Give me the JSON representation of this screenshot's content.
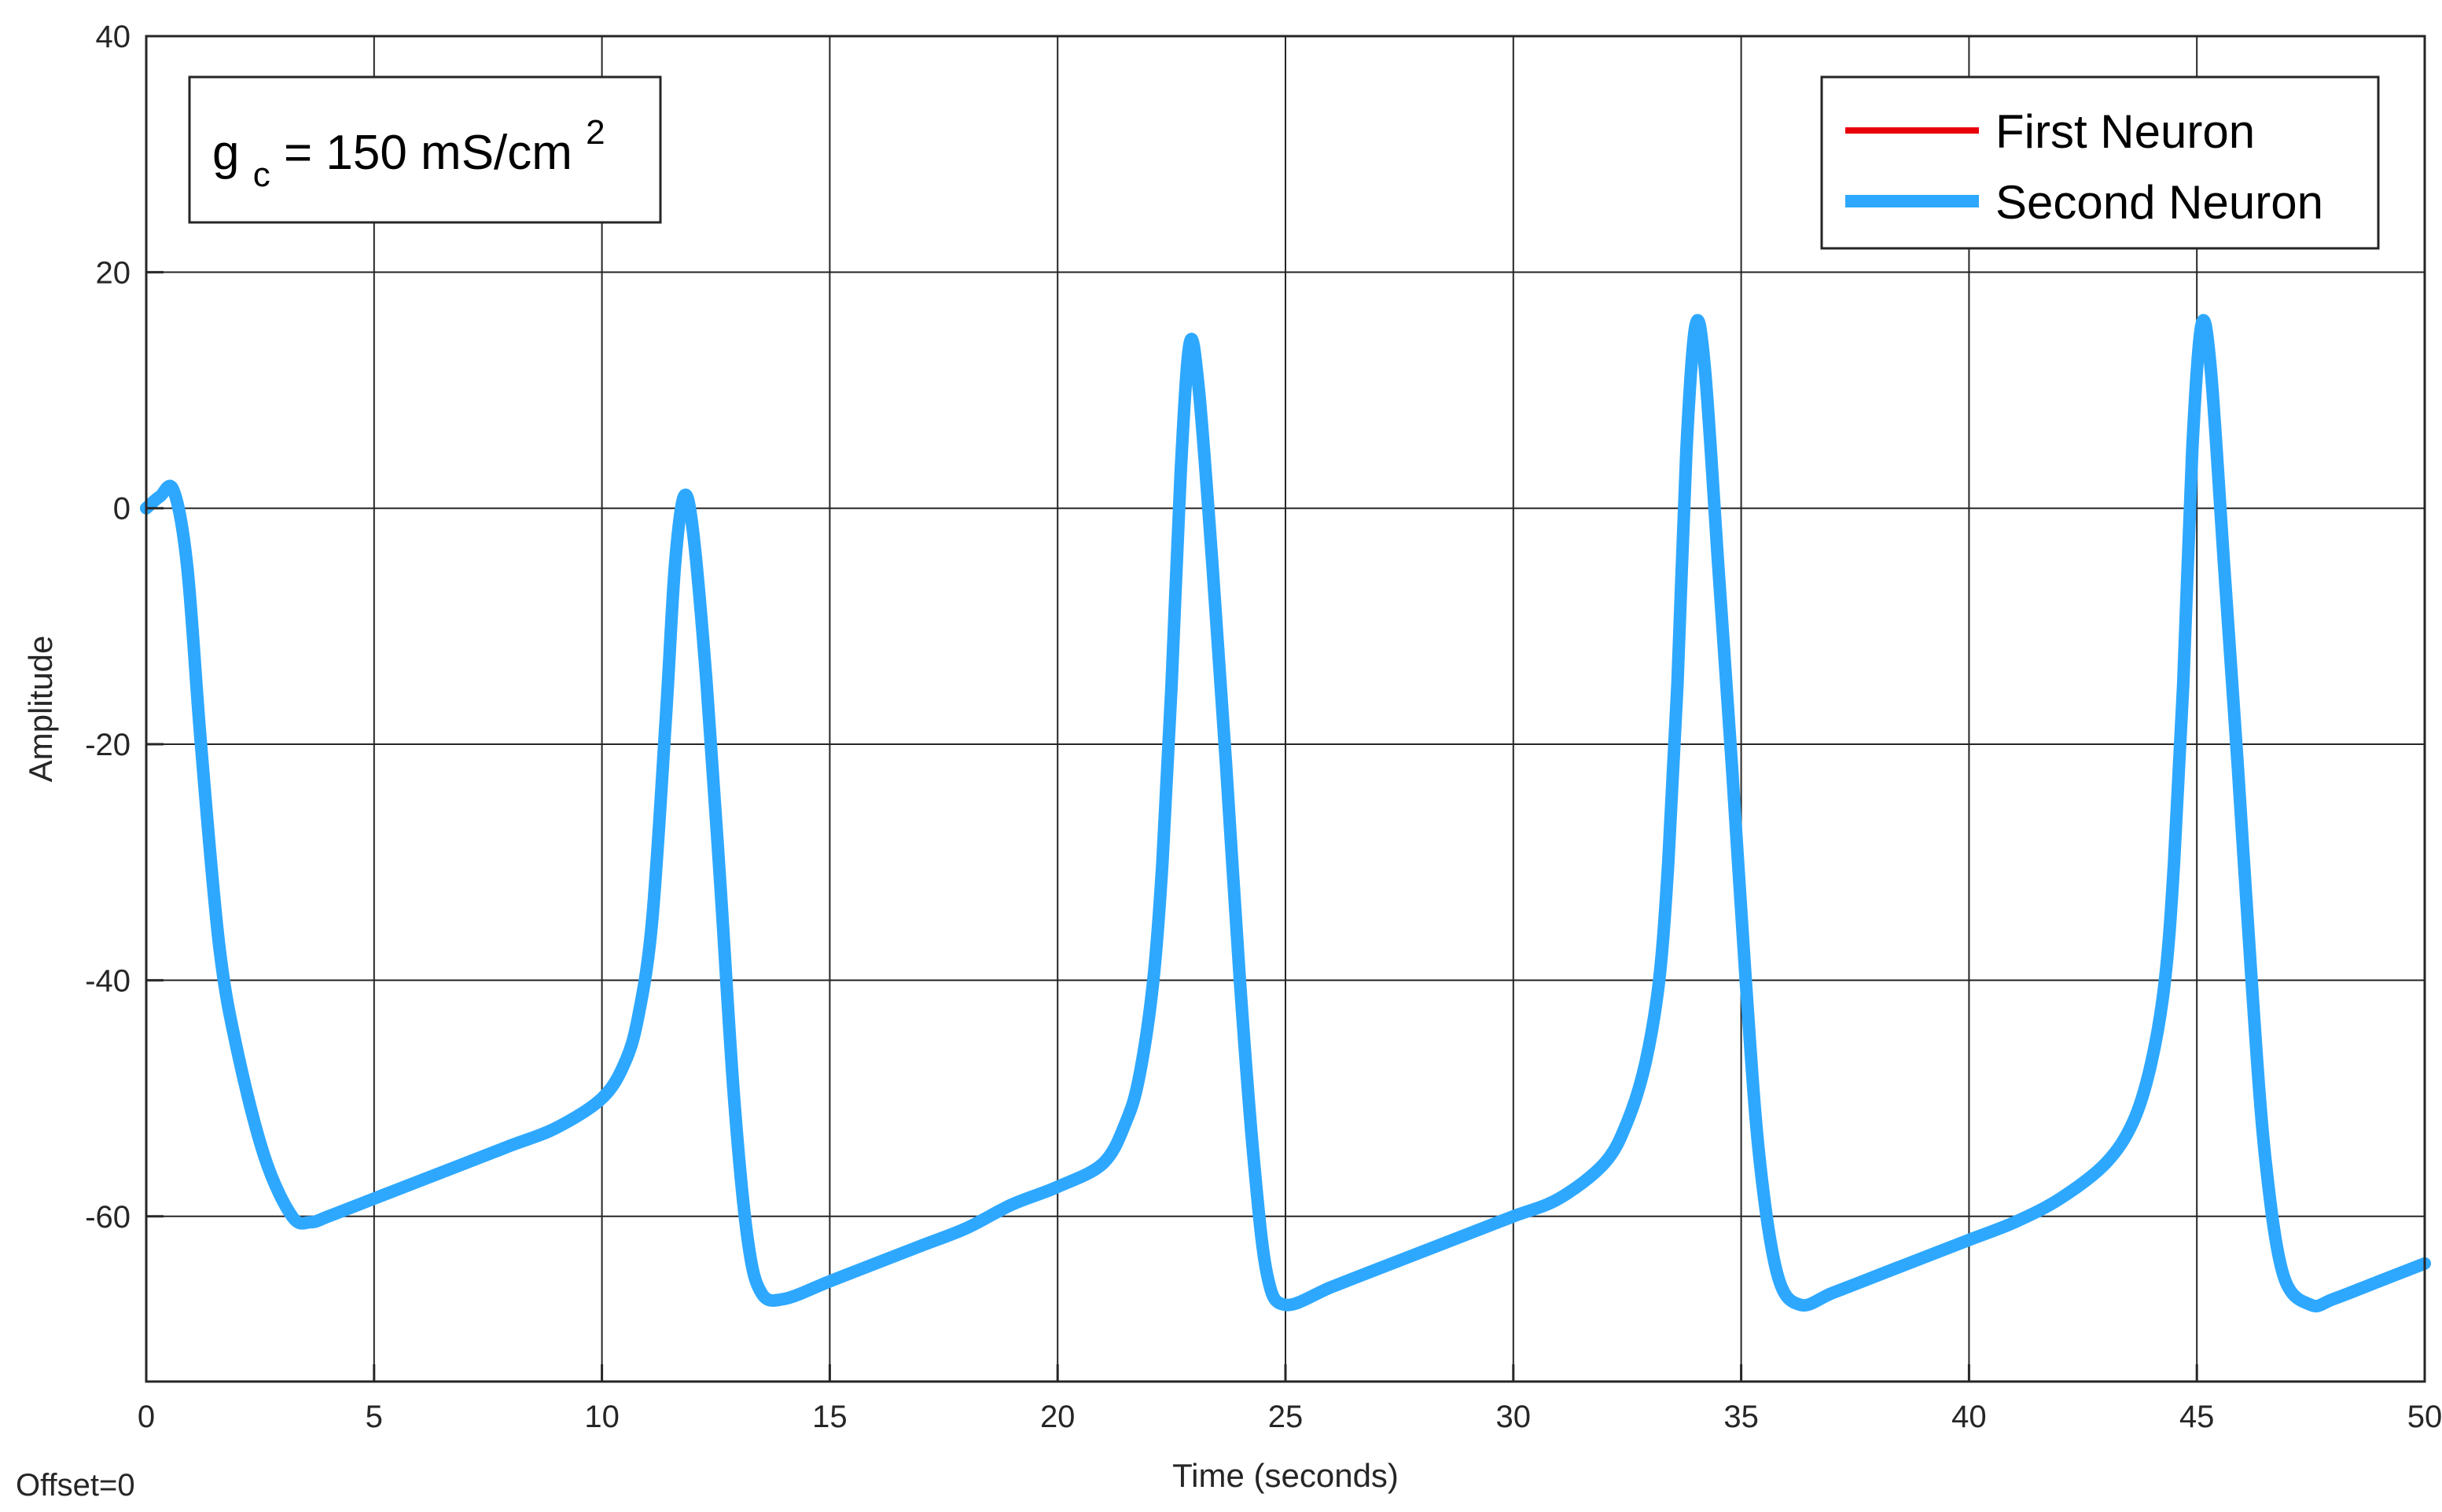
{
  "chart_data": {
    "type": "line",
    "xlabel": "Time (seconds)",
    "ylabel": "Amplitude",
    "xlim": [
      0,
      50
    ],
    "ylim": [
      -74,
      40
    ],
    "xticks": [
      0,
      5,
      10,
      15,
      20,
      25,
      30,
      35,
      40,
      45,
      50
    ],
    "yticks": [
      -60,
      -40,
      -20,
      0,
      20,
      40
    ],
    "grid": true,
    "legend_position": "top-right",
    "annotation": {
      "base": "g",
      "subscript": "c",
      "rest": " = 150 mS/cm",
      "superscript": "2"
    },
    "offset_text": "Offset=0",
    "series": [
      {
        "name": "First Neuron",
        "color": "#e8000b",
        "x": [
          0,
          0.3,
          0.6,
          0.9,
          1.2,
          1.6,
          2.0,
          2.6,
          3.2,
          3.6,
          4.0,
          5.0,
          6.0,
          7.0,
          8.0,
          9.0,
          10.0,
          10.5,
          10.8,
          11.1,
          11.4,
          11.6,
          11.8,
          12.0,
          12.3,
          12.6,
          12.9,
          13.2,
          13.5,
          14.0,
          15.0,
          16.0,
          17.0,
          18.0,
          19.0,
          20.0,
          21.0,
          21.5,
          21.8,
          22.1,
          22.3,
          22.5,
          22.7,
          22.9,
          23.1,
          23.4,
          23.7,
          24.0,
          24.3,
          24.6,
          25.0,
          26.0,
          27.0,
          28.0,
          29.0,
          30.0,
          31.0,
          32.0,
          32.5,
          32.9,
          33.2,
          33.4,
          33.6,
          33.8,
          34.0,
          34.2,
          34.5,
          34.8,
          35.1,
          35.4,
          35.8,
          36.3,
          37.0,
          38.0,
          39.0,
          40.0,
          41.0,
          42.0,
          43.0,
          43.6,
          44.0,
          44.3,
          44.5,
          44.7,
          44.9,
          45.1,
          45.3,
          45.6,
          45.9,
          46.2,
          46.5,
          46.9,
          47.5,
          48.0,
          49.0,
          50.0
        ],
        "y": [
          0,
          1.0,
          1.5,
          -5,
          -20,
          -37,
          -46,
          -55,
          -60,
          -60.5,
          -60,
          -58.5,
          -57,
          -55.5,
          -54,
          -52.5,
          -50,
          -47,
          -43,
          -35,
          -18,
          -5,
          1,
          -2,
          -15,
          -32,
          -50,
          -62,
          -66.5,
          -67,
          -65.5,
          -64,
          -62.5,
          -61,
          -59,
          -57.5,
          -55.5,
          -52,
          -48,
          -40,
          -30,
          -15,
          3,
          14,
          10,
          -5,
          -22,
          -40,
          -55,
          -65,
          -67.5,
          -66,
          -64.5,
          -63,
          -61.5,
          -60,
          -58.5,
          -55.5,
          -52,
          -47,
          -40,
          -30,
          -15,
          5,
          15.5,
          12,
          -5,
          -22,
          -40,
          -55,
          -65,
          -67.5,
          -66.5,
          -65,
          -63.5,
          -62,
          -60.5,
          -58.5,
          -55.5,
          -52,
          -47,
          -40,
          -30,
          -15,
          5,
          15.5,
          12,
          -5,
          -22,
          -40,
          -55,
          -65,
          -67.5,
          -67,
          -65.5,
          -64
        ]
      },
      {
        "name": "Second Neuron",
        "color": "#2ea8ff",
        "x": [
          0,
          0.3,
          0.6,
          0.9,
          1.2,
          1.6,
          2.0,
          2.6,
          3.2,
          3.6,
          4.0,
          5.0,
          6.0,
          7.0,
          8.0,
          9.0,
          10.0,
          10.5,
          10.8,
          11.1,
          11.4,
          11.6,
          11.8,
          12.0,
          12.3,
          12.6,
          12.9,
          13.2,
          13.5,
          14.0,
          15.0,
          16.0,
          17.0,
          18.0,
          19.0,
          20.0,
          21.0,
          21.5,
          21.8,
          22.1,
          22.3,
          22.5,
          22.7,
          22.9,
          23.1,
          23.4,
          23.7,
          24.0,
          24.3,
          24.6,
          25.0,
          26.0,
          27.0,
          28.0,
          29.0,
          30.0,
          31.0,
          32.0,
          32.5,
          32.9,
          33.2,
          33.4,
          33.6,
          33.8,
          34.0,
          34.2,
          34.5,
          34.8,
          35.1,
          35.4,
          35.8,
          36.3,
          37.0,
          38.0,
          39.0,
          40.0,
          41.0,
          42.0,
          43.0,
          43.6,
          44.0,
          44.3,
          44.5,
          44.7,
          44.9,
          45.1,
          45.3,
          45.6,
          45.9,
          46.2,
          46.5,
          46.9,
          47.5,
          48.0,
          49.0,
          50.0
        ],
        "y": [
          0,
          1.0,
          1.5,
          -5,
          -20,
          -37,
          -46,
          -55,
          -60,
          -60.5,
          -60,
          -58.5,
          -57,
          -55.5,
          -54,
          -52.5,
          -50,
          -47,
          -43,
          -35,
          -18,
          -5,
          1,
          -2,
          -15,
          -32,
          -50,
          -62,
          -66.5,
          -67,
          -65.5,
          -64,
          -62.5,
          -61,
          -59,
          -57.5,
          -55.5,
          -52,
          -48,
          -40,
          -30,
          -15,
          3,
          14,
          10,
          -5,
          -22,
          -40,
          -55,
          -65,
          -67.5,
          -66,
          -64.5,
          -63,
          -61.5,
          -60,
          -58.5,
          -55.5,
          -52,
          -47,
          -40,
          -30,
          -15,
          5,
          15.5,
          12,
          -5,
          -22,
          -40,
          -55,
          -65,
          -67.5,
          -66.5,
          -65,
          -63.5,
          -62,
          -60.5,
          -58.5,
          -55.5,
          -52,
          -47,
          -40,
          -30,
          -15,
          5,
          15.5,
          12,
          -5,
          -22,
          -40,
          -55,
          -65,
          -67.5,
          -67,
          -65.5,
          -64
        ]
      }
    ]
  }
}
